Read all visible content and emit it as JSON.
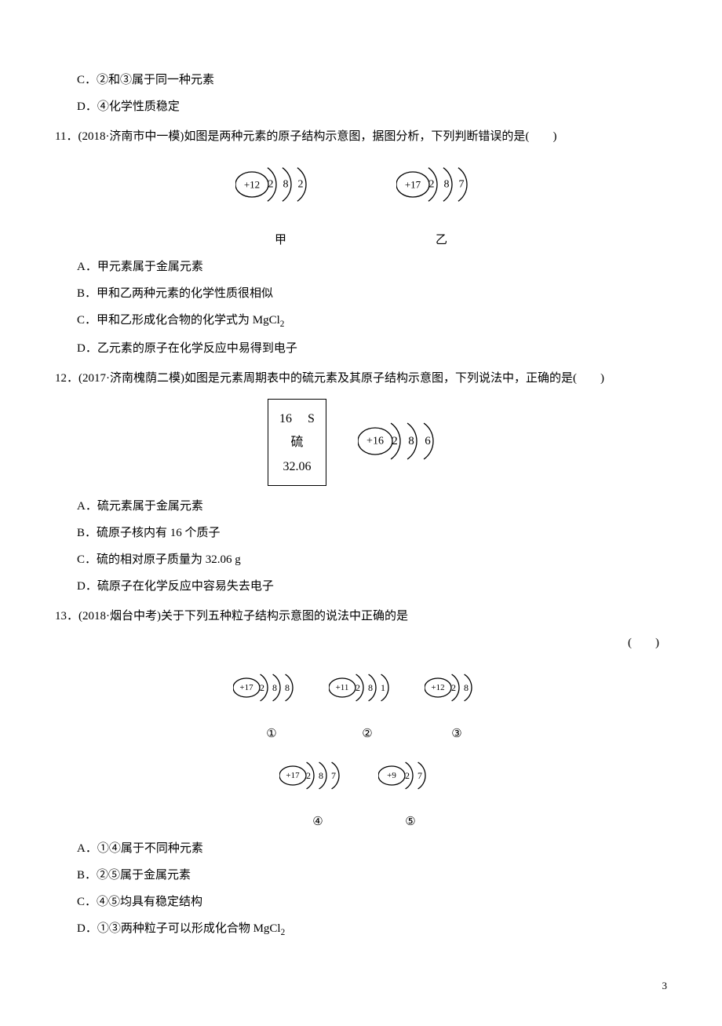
{
  "frag": {
    "optC": "C．②和③属于同一种元素",
    "optD": "D．④化学性质稳定"
  },
  "q11": {
    "stem_prefix": "11．(2018·济南市中一模)如图是两种元素的原子结构示意图，据图分析，下列判断错误的是(",
    "stem_suffix": ")",
    "label_left": "甲",
    "label_right": "乙",
    "optA": "A．甲元素属于金属元素",
    "optB": "B．甲和乙两种元素的化学性质很相似",
    "optC_pre": "C．甲和乙形成化合物的化学式为 MgCl",
    "optC_sub": "2",
    "optD": "D．乙元素的原子在化学反应中易得到电子",
    "atom_left": {
      "nucleus": "+12",
      "shells": [
        "2",
        "8",
        "2"
      ],
      "color": "#000"
    },
    "atom_right": {
      "nucleus": "+17",
      "shells": [
        "2",
        "8",
        "7"
      ],
      "color": "#000"
    }
  },
  "q12": {
    "stem_prefix": "12．(2017·济南槐荫二模)如图是元素周期表中的硫元素及其原子结构示意图，下列说法中，正确的是(",
    "stem_suffix": ")",
    "optA": "A．硫元素属于金属元素",
    "optB": "B．硫原子核内有 16 个质子",
    "optC": "C．硫的相对原子质量为 32.06 g",
    "optD": "D．硫原子在化学反应中容易失去电子",
    "pt": {
      "num": "16",
      "sym": "S",
      "name": "硫",
      "mass": "32.06"
    },
    "atom": {
      "nucleus": "+16",
      "shells": [
        "2",
        "8",
        "6"
      ],
      "color": "#000"
    }
  },
  "q13": {
    "stem": "13．(2018·烟台中考)关于下列五种粒子结构示意图的说法中正确的是",
    "paren": "(　　)",
    "atoms": [
      {
        "nucleus": "+17",
        "shells": [
          "2",
          "8",
          "8"
        ],
        "label": "①",
        "color": "#000"
      },
      {
        "nucleus": "+11",
        "shells": [
          "2",
          "8",
          "1"
        ],
        "label": "②",
        "color": "#000"
      },
      {
        "nucleus": "+12",
        "shells": [
          "2",
          "8"
        ],
        "label": "③",
        "color": "#000"
      },
      {
        "nucleus": "+17",
        "shells": [
          "2",
          "8",
          "7"
        ],
        "label": "④",
        "color": "#000"
      },
      {
        "nucleus": "+9",
        "shells": [
          "2",
          "7"
        ],
        "label": "⑤",
        "color": "#000"
      }
    ],
    "optA": "A．①④属于不同种元素",
    "optB": "B．②⑤属于金属元素",
    "optC": "C．④⑤均具有稳定结构",
    "optD_pre": "D．①③两种粒子可以形成化合物 MgCl",
    "optD_sub": "2"
  },
  "pagenum": "3"
}
